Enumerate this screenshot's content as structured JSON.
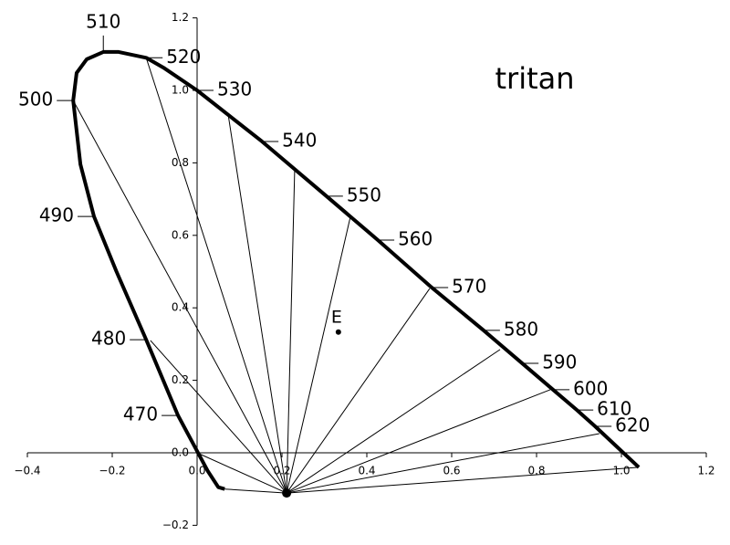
{
  "chart_data": {
    "type": "chromaticity",
    "title": "tritan",
    "xlim": [
      -0.4,
      1.2
    ],
    "ylim": [
      -0.2,
      1.2
    ],
    "xticks": [
      {
        "value": -0.4,
        "label": "−0.4"
      },
      {
        "value": -0.2,
        "label": "−0.2"
      },
      {
        "value": 0,
        "label": "0.0"
      },
      0.2,
      0.4,
      0.6,
      0.8,
      {
        "value": 1.0,
        "label": "1.0"
      },
      1.2
    ],
    "yticks": [
      {
        "value": -0.2,
        "label": "−0.2"
      },
      {
        "value": 0,
        "label": "0.0"
      },
      0.2,
      0.4,
      0.6,
      0.8,
      {
        "value": 1.0,
        "label": "1.0"
      },
      1.2
    ],
    "locus": {
      "color": "#000000",
      "x": [
        0.065,
        0.05,
        0.025,
        -0.045,
        -0.12,
        -0.19,
        -0.243,
        -0.275,
        -0.292,
        -0.284,
        -0.26,
        -0.221,
        -0.185,
        -0.12,
        -0.077,
        0,
        0.153,
        0.305,
        0.426,
        0.553,
        0.675,
        0.766,
        0.839,
        0.895,
        0.938,
        1.041
      ],
      "y": [
        -0.1,
        -0.095,
        -0.05,
        0.103,
        0.312,
        0.5,
        0.652,
        0.796,
        0.972,
        1.048,
        1.086,
        1.106,
        1.106,
        1.09,
        1.061,
        1.0,
        0.859,
        0.708,
        0.587,
        0.456,
        0.338,
        0.247,
        0.174,
        0.118,
        0.073,
        -0.04
      ]
    },
    "wavelengths": {
      "labels": [
        470,
        480,
        490,
        500,
        510,
        520,
        530,
        540,
        550,
        560,
        570,
        580,
        590,
        600,
        610,
        620
      ],
      "x": [
        -0.045,
        -0.12,
        -0.243,
        -0.292,
        -0.221,
        -0.12,
        0,
        0.153,
        0.305,
        0.426,
        0.553,
        0.675,
        0.766,
        0.839,
        0.895,
        0.938
      ],
      "y": [
        0.103,
        0.312,
        0.652,
        0.972,
        1.106,
        1.09,
        1.0,
        0.859,
        0.708,
        0.587,
        0.456,
        0.338,
        0.247,
        0.174,
        0.118,
        0.073
      ]
    },
    "copunctal": {
      "x": 0.211,
      "y": -0.111
    },
    "confusion_lines": {
      "x": [
        0.065,
        0,
        -0.11,
        -0.292,
        -0.12,
        0.073,
        0.23,
        0.361,
        0.548,
        0.714,
        0.832,
        0.948,
        1.041
      ],
      "y": [
        -0.1,
        0,
        0.31,
        0.972,
        1.09,
        0.935,
        0.783,
        0.65,
        0.453,
        0.285,
        0.174,
        0.053,
        -0.04
      ]
    },
    "white_point": {
      "label": "E",
      "x": 0.333,
      "y": 0.333
    }
  }
}
